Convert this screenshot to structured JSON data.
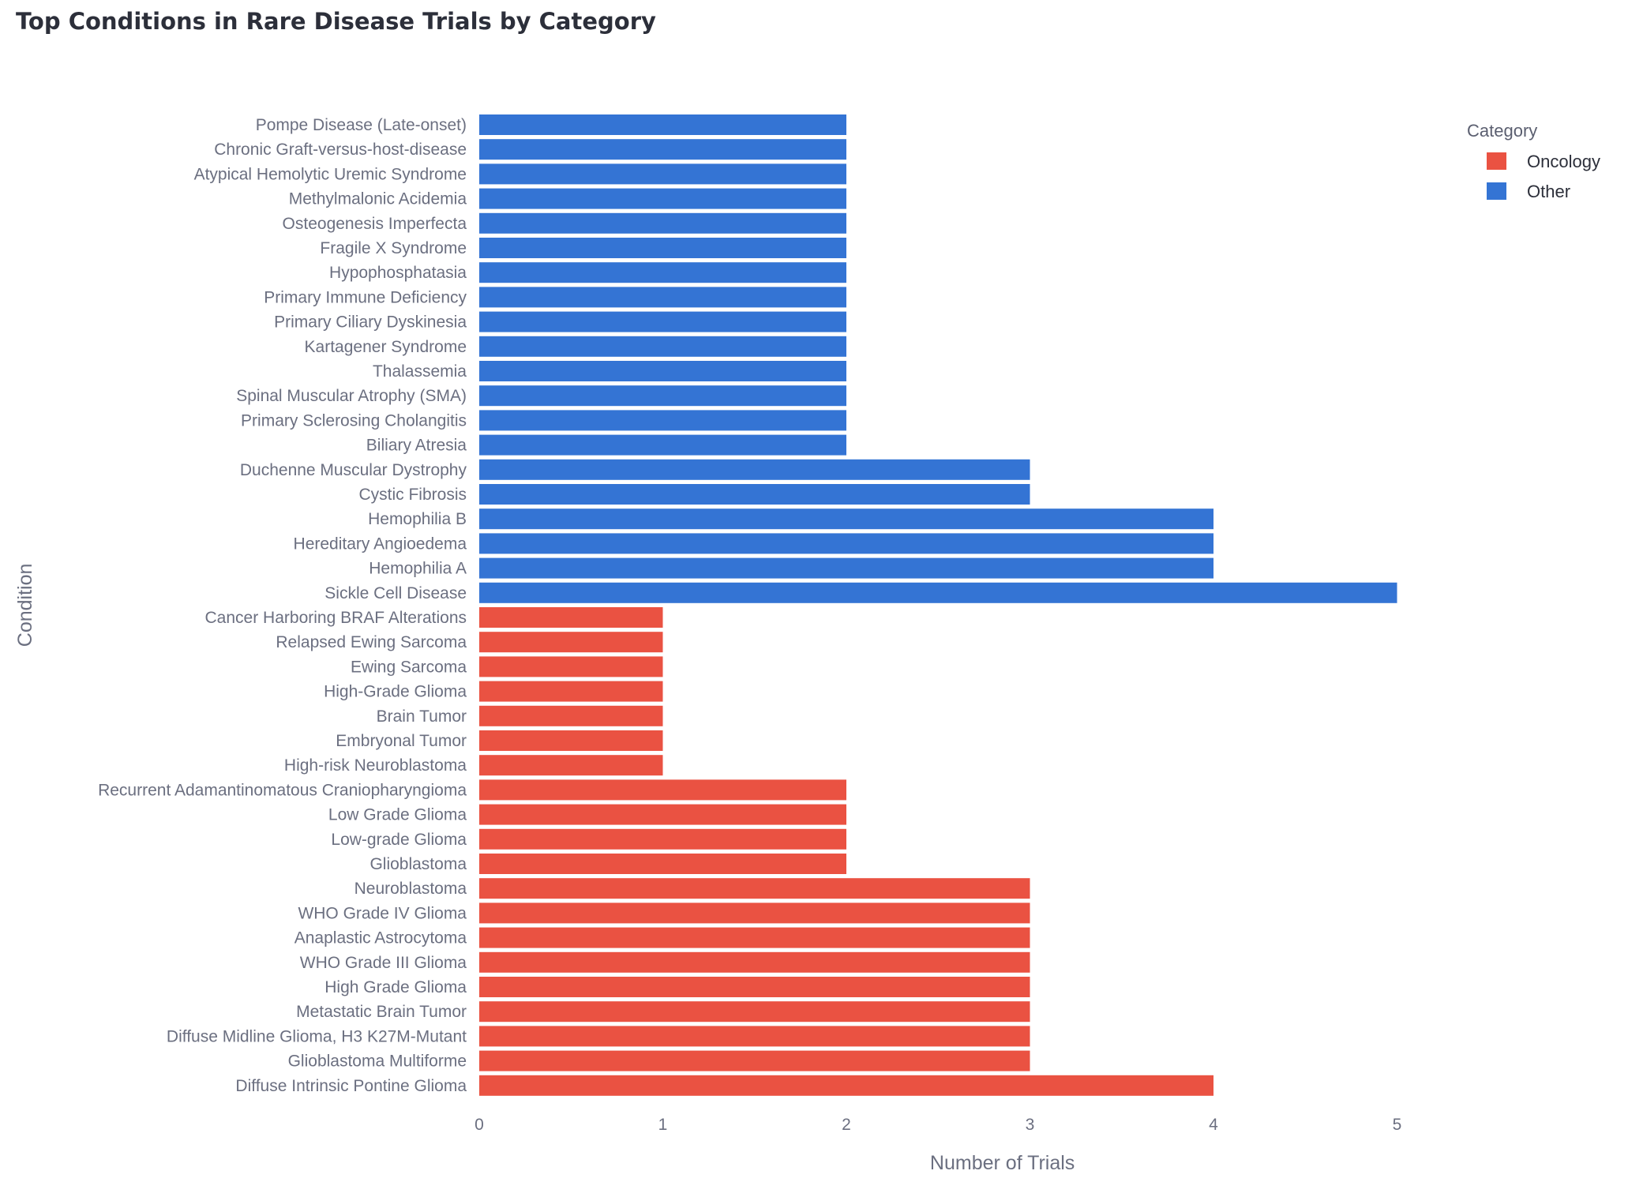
{
  "chart_data": {
    "type": "bar",
    "orientation": "horizontal",
    "title": "Top Conditions in Rare Disease Trials by Category",
    "xlabel": "Number of Trials",
    "ylabel": "Condition",
    "xlim": [
      0,
      5.7
    ],
    "x_ticks": [
      0,
      1,
      2,
      3,
      4,
      5
    ],
    "legend": {
      "title": "Category",
      "placement": "top-right",
      "entries": [
        {
          "name": "Oncology",
          "color": "#ea5242"
        },
        {
          "name": "Other",
          "color": "#3474d4"
        }
      ]
    },
    "colors": {
      "Oncology": "#ea5242",
      "Other": "#3474d4"
    },
    "categories": [
      "Pompe Disease (Late-onset)",
      "Chronic Graft-versus-host-disease",
      "Atypical Hemolytic Uremic Syndrome",
      "Methylmalonic Acidemia",
      "Osteogenesis Imperfecta",
      "Fragile X Syndrome",
      "Hypophosphatasia",
      "Primary Immune Deficiency",
      "Primary Ciliary Dyskinesia",
      "Kartagener Syndrome",
      "Thalassemia",
      "Spinal Muscular Atrophy (SMA)",
      "Primary Sclerosing Cholangitis",
      "Biliary Atresia",
      "Duchenne Muscular Dystrophy",
      "Cystic Fibrosis",
      "Hemophilia B",
      "Hereditary Angioedema",
      "Hemophilia A",
      "Sickle Cell Disease",
      "Cancer Harboring BRAF Alterations",
      "Relapsed Ewing Sarcoma",
      "Ewing Sarcoma",
      "High-Grade Glioma",
      "Brain Tumor",
      "Embryonal Tumor",
      "High-risk Neuroblastoma",
      "Recurrent Adamantinomatous Craniopharyngioma",
      "Low Grade Glioma",
      "Low-grade Glioma",
      "Glioblastoma",
      "Neuroblastoma",
      "WHO Grade IV Glioma",
      "Anaplastic Astrocytoma",
      "WHO Grade III Glioma",
      "High Grade Glioma",
      "Metastatic Brain Tumor",
      "Diffuse Midline Glioma, H3 K27M-Mutant",
      "Glioblastoma Multiforme",
      "Diffuse Intrinsic Pontine Glioma"
    ],
    "values": [
      2,
      2,
      2,
      2,
      2,
      2,
      2,
      2,
      2,
      2,
      2,
      2,
      2,
      2,
      3,
      3,
      4,
      4,
      4,
      5,
      1,
      1,
      1,
      1,
      1,
      1,
      1,
      2,
      2,
      2,
      2,
      3,
      3,
      3,
      3,
      3,
      3,
      3,
      3,
      4
    ],
    "category_group": [
      "Other",
      "Other",
      "Other",
      "Other",
      "Other",
      "Other",
      "Other",
      "Other",
      "Other",
      "Other",
      "Other",
      "Other",
      "Other",
      "Other",
      "Other",
      "Other",
      "Other",
      "Other",
      "Other",
      "Other",
      "Oncology",
      "Oncology",
      "Oncology",
      "Oncology",
      "Oncology",
      "Oncology",
      "Oncology",
      "Oncology",
      "Oncology",
      "Oncology",
      "Oncology",
      "Oncology",
      "Oncology",
      "Oncology",
      "Oncology",
      "Oncology",
      "Oncology",
      "Oncology",
      "Oncology",
      "Oncology"
    ]
  }
}
